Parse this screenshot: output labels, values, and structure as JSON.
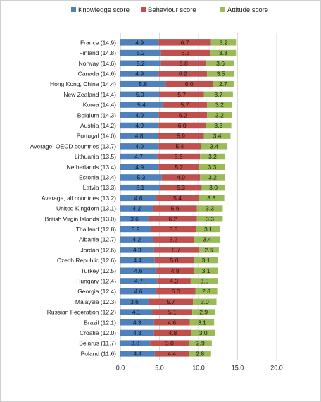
{
  "chart_data": {
    "type": "bar",
    "orientation": "horizontal",
    "stacked": true,
    "title": "",
    "xlabel": "",
    "ylabel": "",
    "xlim": [
      0,
      20
    ],
    "xticks": [
      "0.0",
      "5.0",
      "10.0",
      "15.0",
      "20.0"
    ],
    "grid": true,
    "legend_position": "top",
    "categories": [
      "France (14.9)",
      "Finland (14.8)",
      "Norway (14.6)",
      "Canada (14.6)",
      "Hong Kong, China (14.4)",
      "New Zealand (14.4)",
      "Korea (14.4)",
      "Belgium (14.3)",
      "Austria (14.2)",
      "Portugal (14.0)",
      "Average, OECD countries (13.7)",
      "Lithuania (13.5)",
      "Netherlands (13.4)",
      "Estonia (13.4)",
      "Latvia (13.3)",
      "Average, all countries (13.2)",
      "United Kingdom (13.1)",
      "British Virgin Islands (13.0)",
      "Thailand (12.8)",
      "Albania (12.7)",
      "Jordan (12.6)",
      "Czech Republic (12.6)",
      "Turkey (12.5)",
      "Hungary (12.4)",
      "Georgia (12.4)",
      "Malaysia (12.3)",
      "Russian Federation (12.2)",
      "Brazil (12.1)",
      "Croatia (12.0)",
      "Belarus (11.7)",
      "Poland (11.6)"
    ],
    "series": [
      {
        "name": "Knowledge score",
        "color": "#4f81bd",
        "values": [
          4.9,
          5.2,
          5.2,
          4.9,
          5.8,
          5.0,
          5.4,
          4.9,
          4.9,
          4.8,
          4.9,
          4.7,
          4.9,
          5.3,
          5.1,
          4.6,
          4.2,
          3.6,
          3.9,
          4.2,
          4.3,
          4.4,
          4.6,
          4.7,
          4.6,
          3.6,
          4.1,
          4.3,
          4.3,
          3.8,
          4.4
        ]
      },
      {
        "name": "Behaviour score",
        "color": "#c0504d",
        "values": [
          6.7,
          6.3,
          5.8,
          6.2,
          6.0,
          5.7,
          5.7,
          6.2,
          6.0,
          5.9,
          5.4,
          5.5,
          5.2,
          4.9,
          5.3,
          5.4,
          5.6,
          6.2,
          5.8,
          5.2,
          5.7,
          5.0,
          4.8,
          4.3,
          5.0,
          5.7,
          5.1,
          4.6,
          4.8,
          5.0,
          4.4
        ]
      },
      {
        "name": "Attitude score",
        "color": "#9bbb59",
        "values": [
          3.2,
          3.3,
          3.6,
          3.5,
          2.7,
          3.7,
          3.2,
          3.2,
          3.3,
          3.4,
          3.4,
          3.2,
          3.3,
          3.2,
          3.0,
          3.3,
          3.3,
          3.3,
          3.1,
          3.4,
          2.6,
          3.1,
          3.1,
          3.5,
          2.8,
          3.0,
          2.9,
          3.1,
          3.0,
          2.9,
          2.8
        ]
      }
    ]
  }
}
